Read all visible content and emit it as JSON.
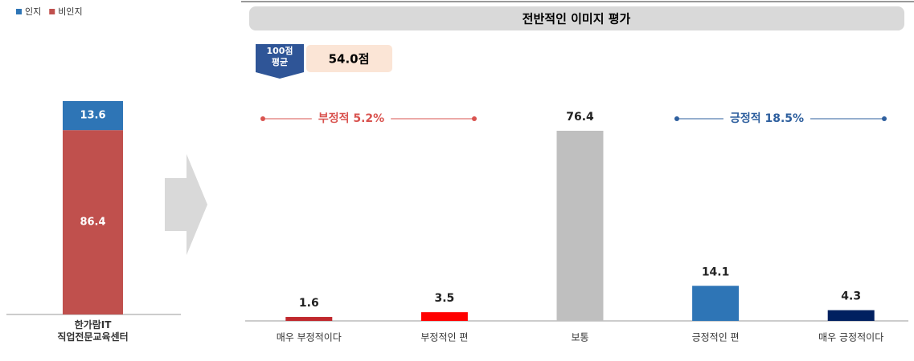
{
  "chart_data": [
    {
      "type": "stacked_bar",
      "categories": [
        "한가람IT\n직업전문교육센터"
      ],
      "series": [
        {
          "name": "인지",
          "color": "#2e75b6",
          "values": [
            13.6
          ]
        },
        {
          "name": "비인지",
          "color": "#c0504d",
          "values": [
            86.4
          ]
        }
      ]
    },
    {
      "type": "bar",
      "title": "전반적인 이미지 평가",
      "badge": "100점\n평균",
      "badge_value": "54.0점",
      "annotations": [
        {
          "text": "부정적 5.2%",
          "color": "#d9534f"
        },
        {
          "text": "긍정적 18.5%",
          "color": "#2e5f9e"
        }
      ],
      "categories": [
        "매우 부정적이다",
        "부정적인 편",
        "보통",
        "긍정적인 편",
        "매우 긍정적이다"
      ],
      "values": [
        1.6,
        3.5,
        76.4,
        14.1,
        4.3
      ],
      "colors": [
        "#c0282d",
        "#ff0000",
        "#bfbfbf",
        "#2e75b6",
        "#002060"
      ]
    }
  ]
}
